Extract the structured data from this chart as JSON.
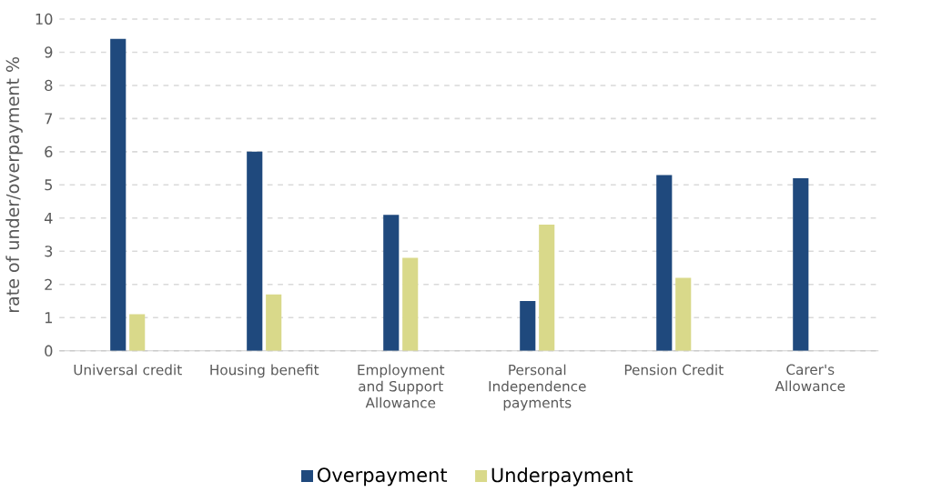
{
  "chart_data": {
    "type": "bar",
    "ylabel": "rate of under/overpayment %",
    "categories": [
      "Universal credit",
      "Housing benefit",
      "Employment and Support Allowance",
      "Personal Independence payments",
      "Pension Credit",
      "Carer's Allowance"
    ],
    "series": [
      {
        "name": "Overpayment",
        "color": "#1f497d",
        "values": [
          9.4,
          6.0,
          4.1,
          1.5,
          5.3,
          5.2
        ]
      },
      {
        "name": "Underpayment",
        "color": "#d9d98a",
        "values": [
          1.1,
          1.7,
          2.8,
          3.8,
          2.2,
          null
        ]
      }
    ],
    "ylim": [
      0,
      10
    ],
    "yticks": [
      0,
      1,
      2,
      3,
      4,
      5,
      6,
      7,
      8,
      9,
      10
    ],
    "grid": "y",
    "legend": "bottom"
  }
}
